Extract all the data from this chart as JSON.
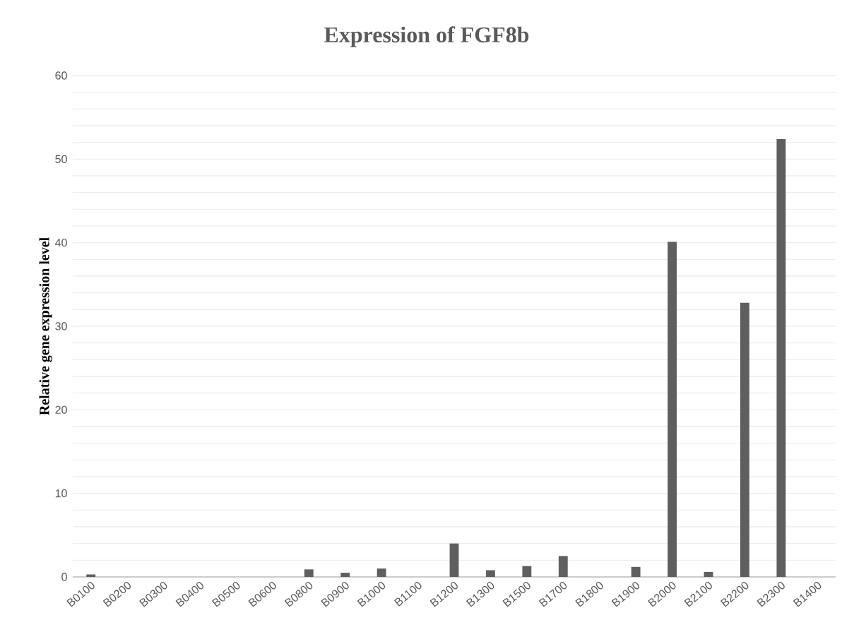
{
  "chart_data": {
    "type": "bar",
    "title": "Expression of FGF8b",
    "ylabel": "Relative gene expression level",
    "categories": [
      "B0100",
      "B0200",
      "B0300",
      "B0400",
      "B0500",
      "B0600",
      "B0800",
      "B0900",
      "B1000",
      "B1100",
      "B1200",
      "B1300",
      "B1500",
      "B1700",
      "B1800",
      "B1900",
      "B2000",
      "B2100",
      "B2200",
      "B2300",
      "B1400"
    ],
    "values": [
      0.3,
      0,
      0,
      0,
      0,
      0,
      0.9,
      0.5,
      1.0,
      0,
      4.0,
      0.8,
      1.3,
      2.5,
      0,
      1.2,
      40.1,
      0.6,
      32.8,
      52.4,
      0
    ],
    "color": "#5f5f5f",
    "ylim": [
      0,
      60
    ],
    "yticks": [
      0,
      10,
      20,
      30,
      40,
      50,
      60
    ],
    "grid": "y"
  }
}
